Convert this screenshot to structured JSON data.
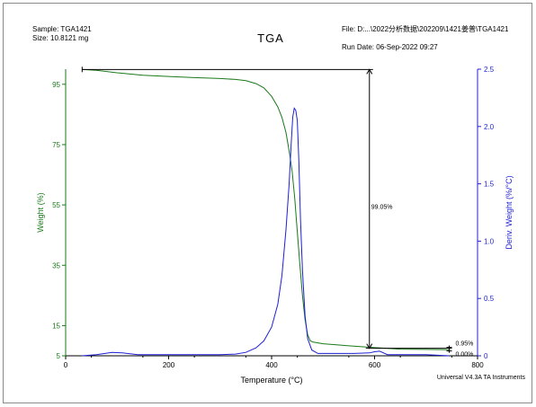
{
  "header": {
    "sample": "Sample: TGA1421",
    "size": "Size:  10.8121 mg",
    "title": "TGA",
    "file": "File: D:...\\2022分析数据\\202209\\1421姜普\\TGA1421",
    "run_date": "Run Date: 06-Sep-2022 09:27"
  },
  "footer": {
    "instrument": "Universal V4.3A TA Instruments"
  },
  "colors": {
    "weight": "#1a7a1a",
    "deriv": "#1f1fd6",
    "axis": "#000000",
    "annotation": "#000000"
  },
  "chart_data": {
    "type": "line",
    "title": "TGA",
    "xlabel": "Temperature (°C)",
    "ylabel_left": "Weight (%)",
    "ylabel_right": "Deriv. Weight (%/°C)",
    "xlim": [
      0,
      800
    ],
    "ylim_left": [
      5,
      100
    ],
    "ylim_right": [
      0,
      2.5
    ],
    "x_ticks": [
      0,
      200,
      400,
      600,
      800
    ],
    "y_left_ticks": [
      5,
      15,
      35,
      55,
      75,
      95
    ],
    "y_left_tick_labels": [
      "5",
      "15",
      "35",
      "55",
      "75",
      "95"
    ],
    "y_right_ticks": [
      0.0,
      0.5,
      1.0,
      1.5,
      2.0,
      2.5
    ],
    "y_right_tick_labels": [
      "0",
      "0.5",
      "1.0",
      "1.5",
      "2.0",
      "2.5"
    ],
    "series": [
      {
        "name": "Weight (%)",
        "axis": "left",
        "color": "#1a7a1a",
        "x": [
          32,
          60,
          100,
          150,
          200,
          250,
          300,
          330,
          350,
          370,
          385,
          400,
          412,
          420,
          428,
          435,
          440,
          445,
          450,
          455,
          460,
          465,
          470,
          475,
          480,
          500,
          550,
          600,
          650,
          700,
          745
        ],
        "y": [
          99.9,
          99.6,
          98.8,
          98.0,
          97.6,
          97.2,
          96.9,
          96.6,
          96.2,
          95.2,
          93.8,
          91.0,
          87.5,
          84.0,
          79.0,
          72.0,
          66.0,
          57.0,
          46.0,
          35.0,
          25.0,
          17.0,
          12.0,
          10.0,
          9.6,
          9.0,
          8.3,
          7.7,
          7.2,
          7.1,
          7.0
        ]
      },
      {
        "name": "Deriv. Weight (%/°C)",
        "axis": "right",
        "color": "#1f1fd6",
        "x": [
          32,
          60,
          90,
          110,
          140,
          180,
          220,
          260,
          300,
          330,
          350,
          370,
          385,
          400,
          412,
          420,
          428,
          434,
          438,
          441,
          444,
          447,
          450,
          453,
          456,
          460,
          465,
          470,
          478,
          490,
          520,
          560,
          590,
          600,
          610,
          625,
          660,
          700,
          745
        ],
        "y": [
          0.0,
          0.01,
          0.03,
          0.025,
          0.01,
          0.01,
          0.01,
          0.01,
          0.01,
          0.015,
          0.03,
          0.07,
          0.13,
          0.25,
          0.45,
          0.7,
          1.1,
          1.5,
          1.85,
          2.08,
          2.16,
          2.14,
          2.05,
          1.7,
          1.2,
          0.75,
          0.35,
          0.15,
          0.05,
          0.02,
          0.02,
          0.02,
          0.025,
          0.035,
          0.04,
          0.01,
          0.01,
          0.01,
          0.0
        ]
      }
    ],
    "annotations": [
      {
        "label": "99.05%",
        "x": 590,
        "y_top": 99.9,
        "y_bottom": 7.5
      },
      {
        "label": "0.95%",
        "x": 745,
        "y_top": 7.8,
        "y_bottom": 6.6
      },
      {
        "label": "0.00%",
        "x": 745,
        "y": 6.6
      }
    ]
  }
}
